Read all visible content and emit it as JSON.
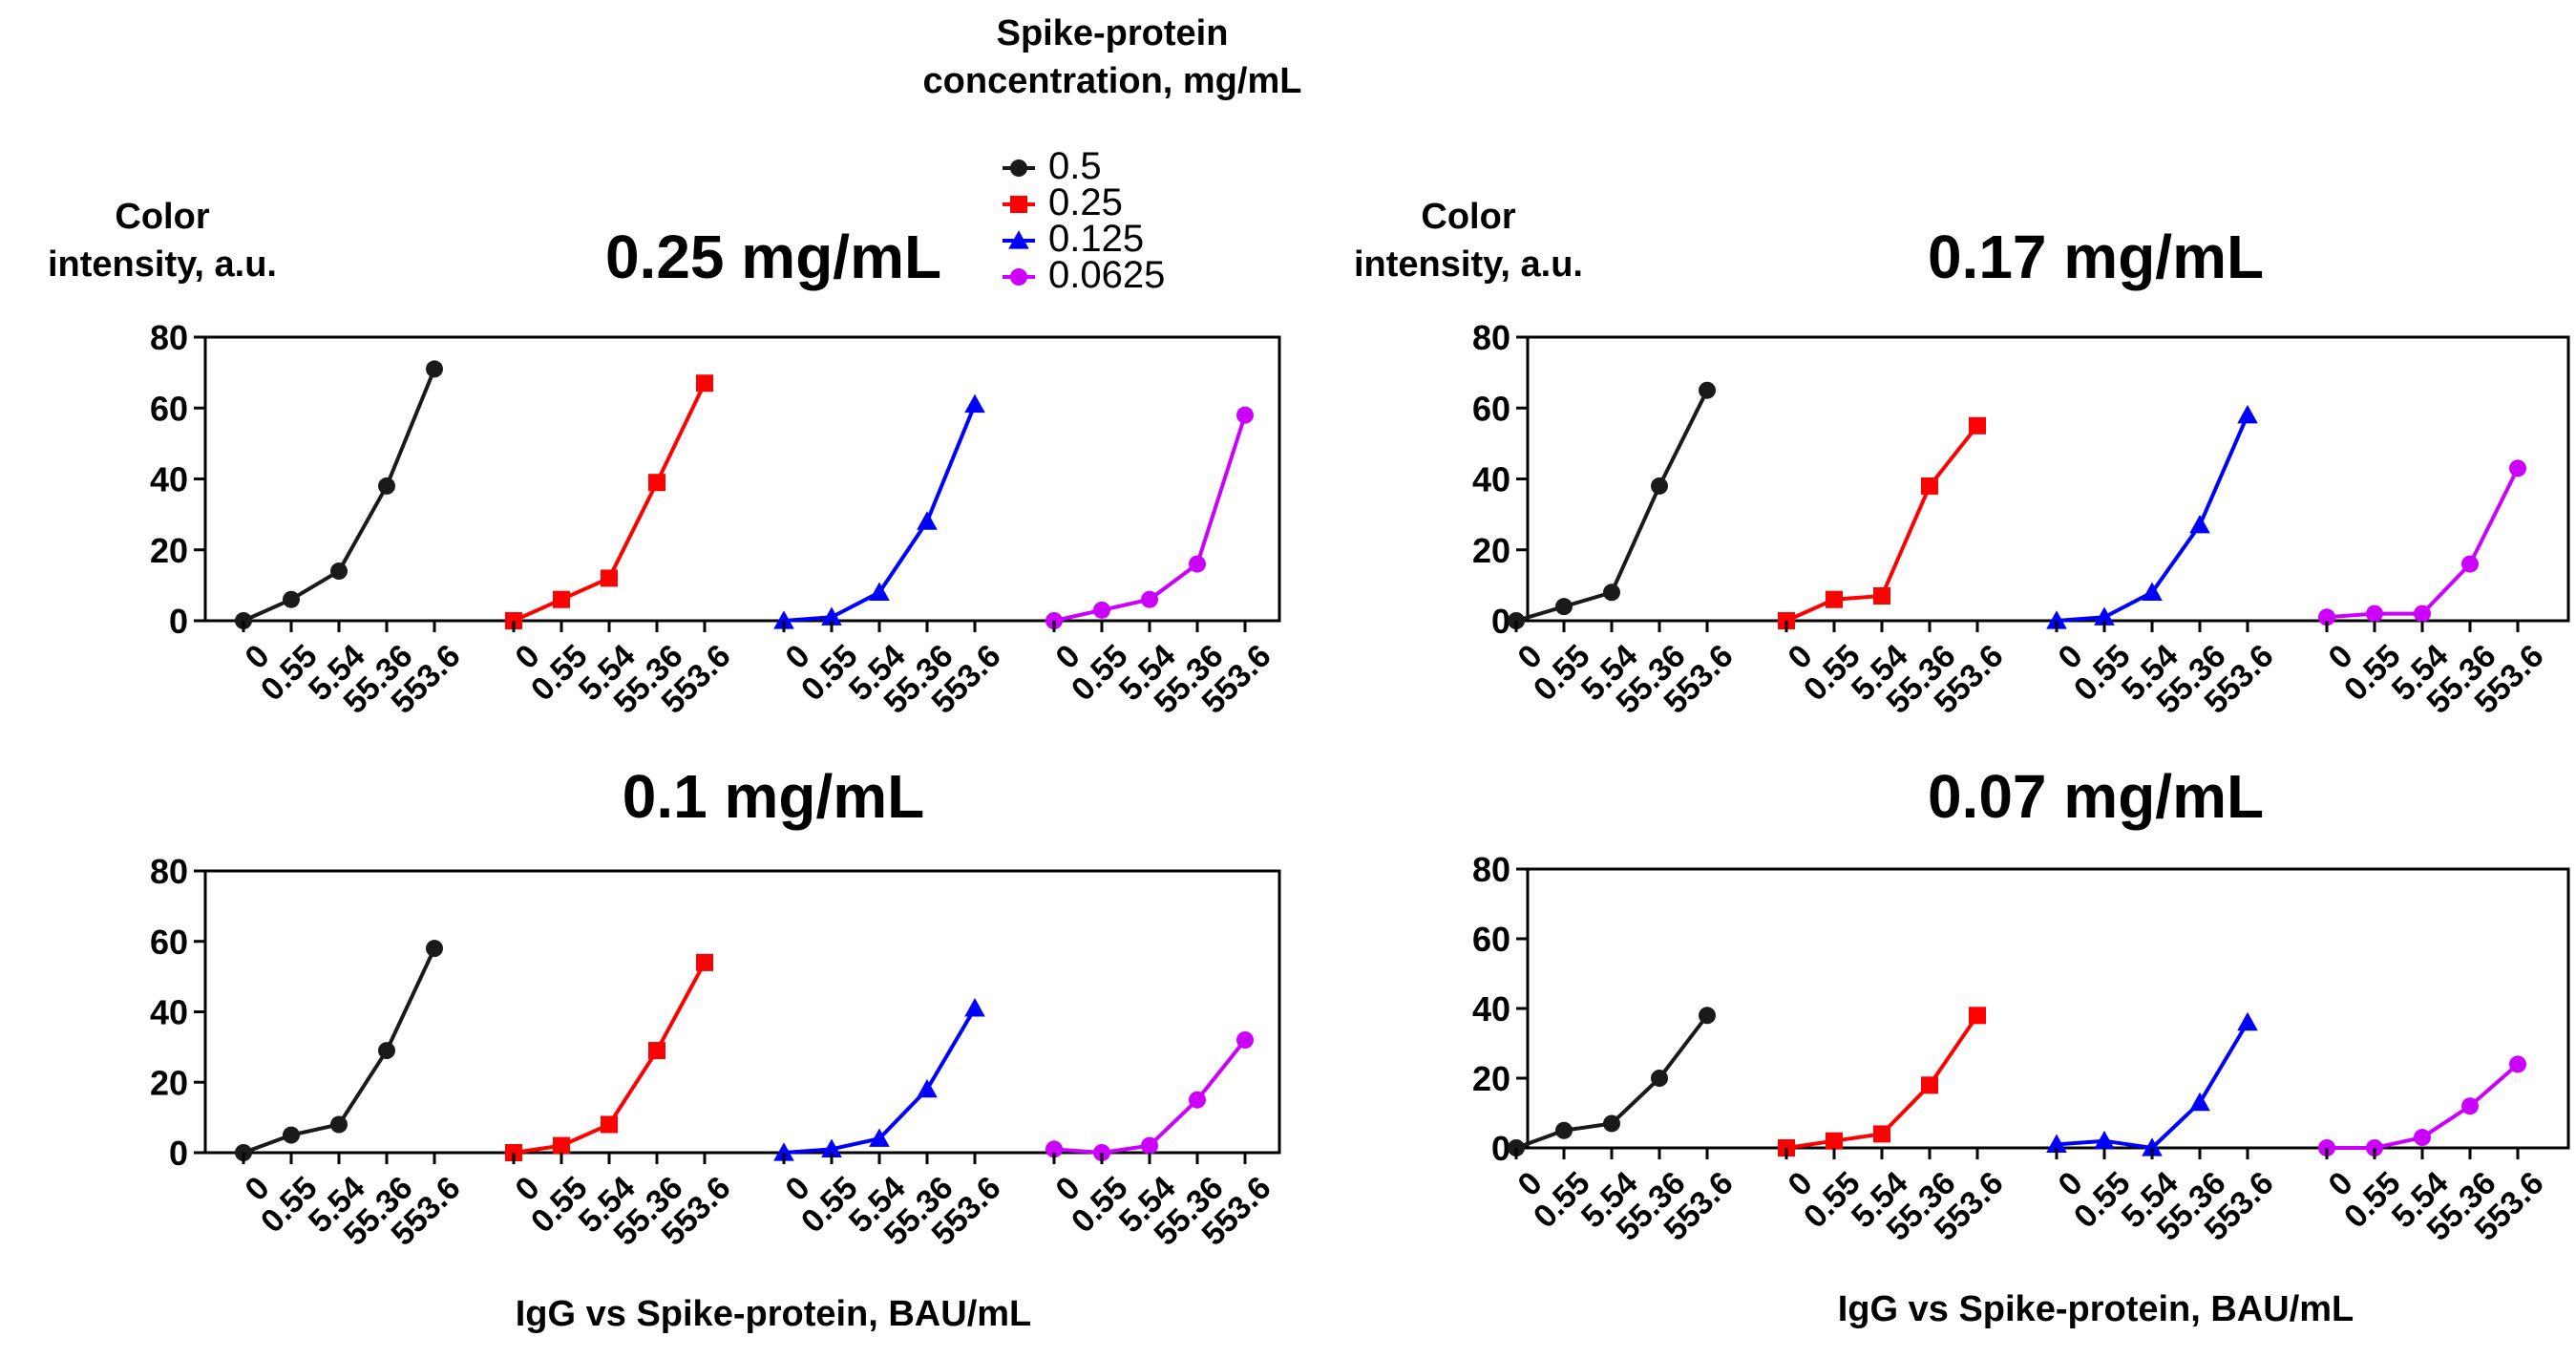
{
  "legend": {
    "title_line1": "Spike-protein",
    "title_line2": "concentration, mg/mL",
    "entries": [
      {
        "label": "0.5",
        "color": "#1a1a1a",
        "marker": "circle"
      },
      {
        "label": "0.25",
        "color": "#ff0000",
        "marker": "square"
      },
      {
        "label": "0.125",
        "color": "#0000ff",
        "marker": "triangle"
      },
      {
        "label": "0.0625",
        "color": "#cc00ff",
        "marker": "circle"
      }
    ]
  },
  "y_axis_label": {
    "line1": "Color",
    "line2": "intensity, a.u."
  },
  "x_axis_label": "IgG vs Spike-protein, BAU/mL",
  "chart_data": [
    {
      "type": "line",
      "title": "0.25 mg/mL",
      "ylim": [
        0,
        80
      ],
      "yticks": [
        0,
        20,
        40,
        60,
        80
      ],
      "categories": [
        "0",
        "0.55",
        "5.54",
        "55.36",
        "553.6"
      ],
      "series": [
        {
          "name": "0.5",
          "values": [
            0,
            6,
            14,
            38,
            71
          ]
        },
        {
          "name": "0.25",
          "values": [
            0,
            6,
            12,
            39,
            67
          ]
        },
        {
          "name": "0.125",
          "values": [
            0,
            1,
            8,
            28,
            61
          ]
        },
        {
          "name": "0.0625",
          "values": [
            0,
            3,
            6,
            16,
            58
          ]
        }
      ]
    },
    {
      "type": "line",
      "title": "0.17 mg/mL",
      "ylim": [
        0,
        80
      ],
      "yticks": [
        0,
        20,
        40,
        60,
        80
      ],
      "categories": [
        "0",
        "0.55",
        "5.54",
        "55.36",
        "553.6"
      ],
      "series": [
        {
          "name": "0.5",
          "values": [
            0,
            4,
            8,
            38,
            65
          ]
        },
        {
          "name": "0.25",
          "values": [
            0,
            6,
            7,
            38,
            55
          ]
        },
        {
          "name": "0.125",
          "values": [
            0,
            1,
            8,
            27,
            58
          ]
        },
        {
          "name": "0.0625",
          "values": [
            1,
            2,
            2,
            16,
            43
          ]
        }
      ]
    },
    {
      "type": "line",
      "title": "0.1 mg/mL",
      "ylim": [
        0,
        80
      ],
      "yticks": [
        0,
        20,
        40,
        60,
        80
      ],
      "categories": [
        "0",
        "0.55",
        "5.54",
        "55.36",
        "553.6"
      ],
      "series": [
        {
          "name": "0.5",
          "values": [
            0,
            5,
            8,
            29,
            58
          ]
        },
        {
          "name": "0.25",
          "values": [
            0,
            2,
            8,
            29,
            54
          ]
        },
        {
          "name": "0.125",
          "values": [
            0,
            1,
            4,
            18,
            41
          ]
        },
        {
          "name": "0.0625",
          "values": [
            1,
            0,
            2,
            15,
            32
          ]
        }
      ]
    },
    {
      "type": "line",
      "title": "0.07 mg/mL",
      "ylim": [
        0,
        80
      ],
      "yticks": [
        0,
        20,
        40,
        60,
        80
      ],
      "categories": [
        "0",
        "0.55",
        "5.54",
        "55.36",
        "553.6"
      ],
      "series": [
        {
          "name": "0.5",
          "values": [
            0,
            5,
            7,
            20,
            38
          ]
        },
        {
          "name": "0.25",
          "values": [
            0,
            2,
            4,
            18,
            38
          ]
        },
        {
          "name": "0.125",
          "values": [
            1,
            2,
            0,
            13,
            36
          ]
        },
        {
          "name": "0.0625",
          "values": [
            0,
            0,
            3,
            12,
            24
          ]
        }
      ]
    }
  ]
}
